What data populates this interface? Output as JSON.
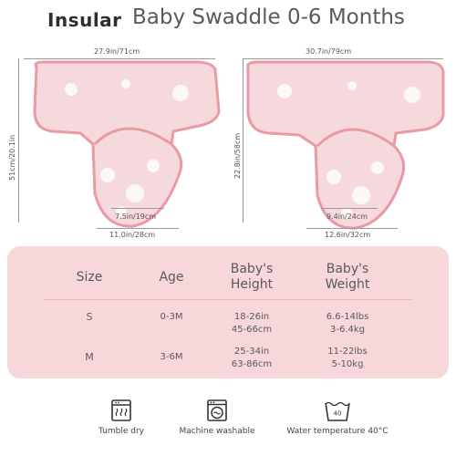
{
  "header": {
    "brand": "Insular",
    "title": "Baby Swaddle 0-6 Months"
  },
  "small_swaddle": {
    "top_width": "27.9in/71cm",
    "height": "51cm/20.1in",
    "inner_width": "7.5in/19cm",
    "bottom_width": "11.0in/28cm"
  },
  "large_swaddle": {
    "top_width": "30.7in/79cm",
    "height": "22.8in/58cm",
    "inner_width": "9.4in/24cm",
    "bottom_width": "12.6in/32cm"
  },
  "size_table": {
    "headers": {
      "size": "Size",
      "age": "Age",
      "height_line1": "Baby's",
      "height_line2": "Height",
      "weight_line1": "Baby's",
      "weight_line2": "Weight"
    },
    "rows": [
      {
        "size": "S",
        "age": "0-3M",
        "height_in": "18-26in",
        "height_cm": "45-66cm",
        "weight_lbs": "6.6-14lbs",
        "weight_kg": "3-6.4kg"
      },
      {
        "size": "M",
        "age": "3-6M",
        "height_in": "25-34in",
        "height_cm": "63-86cm",
        "weight_lbs": "11-22lbs",
        "weight_kg": "5-10kg"
      }
    ]
  },
  "care": {
    "tumble_dry": "Tumble dry",
    "machine_washable": "Machine washable",
    "water_temp_label": "Water temperature 40°C",
    "water_temp_value": "40"
  },
  "colors": {
    "swaddle_fill": "#f6d9dc",
    "swaddle_trim": "#e99aa3",
    "table_bg": "#f7d7da"
  }
}
